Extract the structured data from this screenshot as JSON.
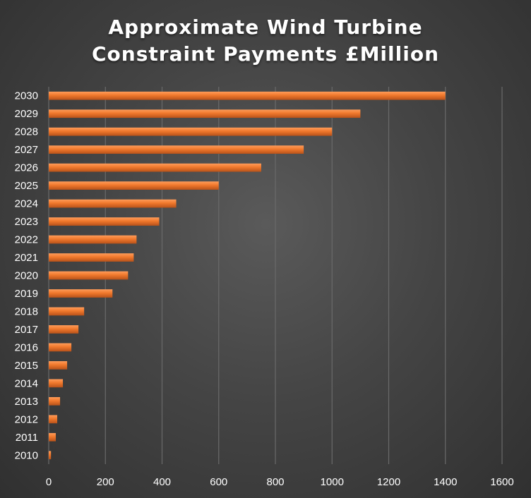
{
  "chart_data": {
    "type": "bar",
    "orientation": "horizontal",
    "title_lines": [
      "Approximate Wind Turbine",
      "Constraint Payments £Million"
    ],
    "categories": [
      "2010",
      "2011",
      "2012",
      "2013",
      "2014",
      "2015",
      "2016",
      "2017",
      "2018",
      "2019",
      "2020",
      "2021",
      "2022",
      "2023",
      "2024",
      "2025",
      "2026",
      "2027",
      "2028",
      "2029",
      "2030"
    ],
    "values": [
      8,
      25,
      30,
      40,
      50,
      65,
      80,
      105,
      125,
      225,
      280,
      300,
      310,
      390,
      450,
      600,
      750,
      900,
      1000,
      1100,
      1400
    ],
    "xlim": [
      0,
      1600
    ],
    "x_ticks": [
      "0",
      "200",
      "400",
      "600",
      "800",
      "1000",
      "1200",
      "1400",
      "1600"
    ],
    "grid": "vertical",
    "legend": "none",
    "bar_color": "#f0782c",
    "bar_highlight": "#ff9c5a",
    "bar_shadow": "#b8521a",
    "background_color": "#454545",
    "grid_color": "#6a6a6a"
  }
}
